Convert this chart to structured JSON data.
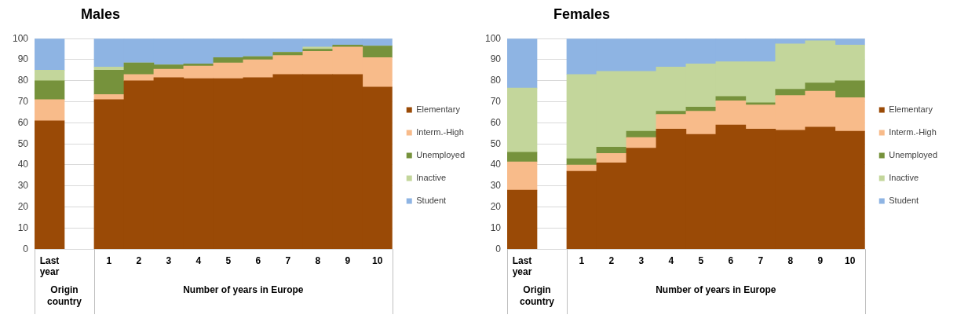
{
  "chart_data": [
    {
      "type": "bar",
      "title": "Males",
      "stacked": true,
      "categories": [
        "Last year",
        null,
        "1",
        "2",
        "3",
        "4",
        "5",
        "6",
        "7",
        "8",
        "9",
        "10"
      ],
      "ylim": [
        0,
        100
      ],
      "yticks": [
        0,
        10,
        20,
        30,
        40,
        50,
        60,
        70,
        80,
        90,
        100
      ],
      "grid": "y",
      "legend": "right",
      "annotations": [
        "Origin country",
        "Number of years in Europe"
      ],
      "series": [
        {
          "name": "Elementary",
          "color": "#9a4a06",
          "values": [
            61,
            null,
            71,
            80,
            81.5,
            81,
            81,
            81.5,
            83,
            83,
            83,
            77
          ]
        },
        {
          "name": "Interm.-High",
          "color": "#f8bb8a",
          "values": [
            10,
            null,
            2.5,
            3,
            4,
            6,
            7.5,
            8.5,
            9,
            11,
            13,
            14
          ]
        },
        {
          "name": "Unemployed",
          "color": "#76923c",
          "values": [
            9,
            null,
            11.5,
            5.5,
            2,
            1,
            2.5,
            1.5,
            1.5,
            1,
            1,
            5.5
          ]
        },
        {
          "name": "Inactive",
          "color": "#c3d69b",
          "values": [
            5,
            null,
            1.5,
            0,
            0,
            0,
            0,
            0,
            0,
            1,
            0,
            0
          ]
        },
        {
          "name": "Student",
          "color": "#8eb4e3",
          "values": [
            15,
            null,
            13.5,
            11.5,
            12.5,
            12,
            9,
            8.5,
            6.5,
            4,
            3,
            3.5
          ]
        }
      ]
    },
    {
      "type": "bar",
      "title": "Females",
      "stacked": true,
      "categories": [
        "Last year",
        null,
        "1",
        "2",
        "3",
        "4",
        "5",
        "6",
        "7",
        "8",
        "9",
        "10"
      ],
      "ylim": [
        0,
        100
      ],
      "yticks": [
        0,
        10,
        20,
        30,
        40,
        50,
        60,
        70,
        80,
        90,
        100
      ],
      "grid": "y",
      "legend": "right",
      "annotations": [
        "Origin country",
        "Number of years in Europe"
      ],
      "series": [
        {
          "name": "Elementary",
          "color": "#9a4a06",
          "values": [
            28,
            null,
            37,
            41,
            48,
            57,
            54.5,
            59,
            57,
            56.5,
            58,
            56
          ]
        },
        {
          "name": "Interm.-High",
          "color": "#f8bb8a",
          "values": [
            13.5,
            null,
            3,
            4.5,
            5,
            7,
            11,
            11.5,
            11.5,
            16.5,
            17,
            16
          ]
        },
        {
          "name": "Unemployed",
          "color": "#76923c",
          "values": [
            4.5,
            null,
            3,
            3,
            3,
            1.5,
            2,
            2,
            1,
            3,
            4,
            8
          ]
        },
        {
          "name": "Inactive",
          "color": "#c3d69b",
          "values": [
            30.5,
            null,
            40,
            36,
            28.5,
            21,
            20.5,
            16.5,
            19.5,
            21.5,
            20,
            17
          ]
        },
        {
          "name": "Student",
          "color": "#8eb4e3",
          "values": [
            23.5,
            null,
            17,
            15.5,
            15.5,
            13.5,
            12,
            11,
            11,
            2.5,
            1,
            3
          ]
        }
      ]
    }
  ]
}
